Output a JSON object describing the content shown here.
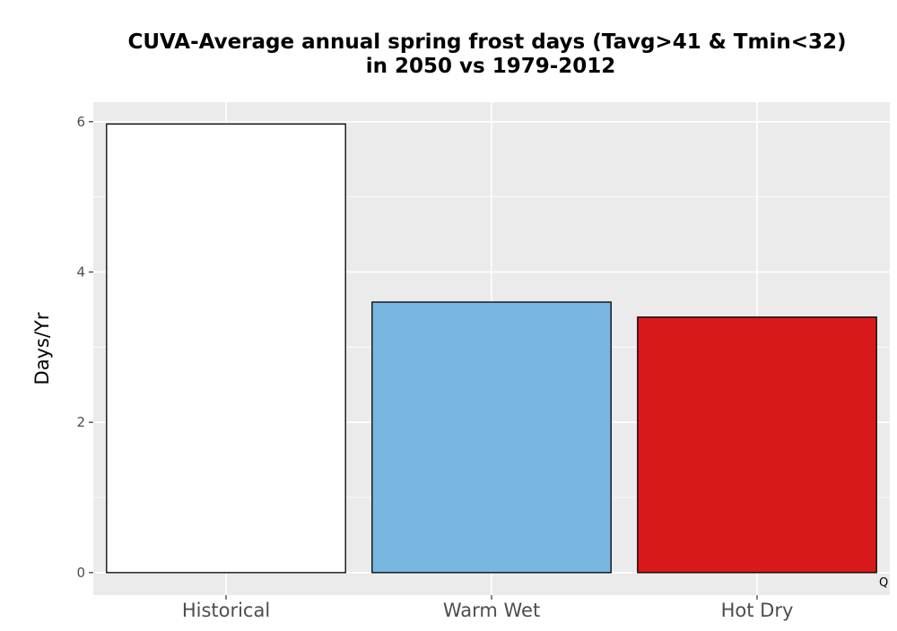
{
  "chart_data": {
    "type": "bar",
    "title_line1": "CUVA-Average annual spring frost days (Tavg>41 & Tmin<32)",
    "title_line2": "in 2050 vs 1979-2012",
    "xlabel": "",
    "ylabel": "Days/Yr",
    "categories": [
      "Historical",
      "Warm Wet",
      "Hot Dry"
    ],
    "values": [
      5.97,
      3.6,
      3.4
    ],
    "colors": [
      "#ffffff",
      "#78b7e1",
      "#d7191c"
    ],
    "bar_outline_color": "#000000",
    "ylim": [
      -0.3,
      6.26
    ],
    "yticks": [
      0,
      2,
      4,
      6
    ],
    "grid": true,
    "panel_background": "#ebebeb",
    "grid_color": "#ffffff",
    "annotation": "Q"
  }
}
